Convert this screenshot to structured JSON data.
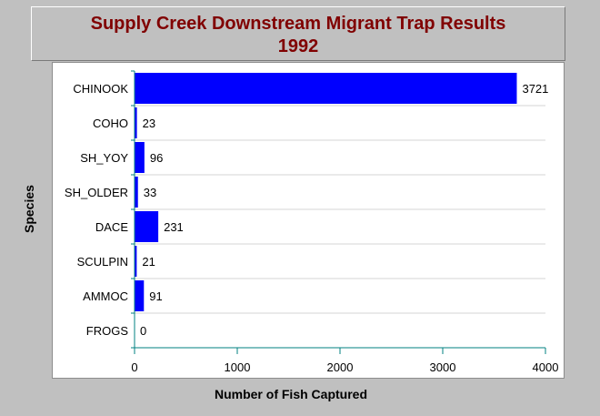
{
  "title": {
    "line1": "Supply Creek Downstream Migrant Trap Results",
    "line2": "1992"
  },
  "colors": {
    "bar": "#0000ff",
    "axis": "#008080",
    "title": "#800000",
    "background": "#c0c0c0",
    "plot": "#ffffff"
  },
  "chart_data": {
    "type": "bar",
    "orientation": "horizontal",
    "title": "Supply Creek Downstream Migrant Trap Results 1992",
    "xlabel": "Number of Fish Captured",
    "ylabel": "Species",
    "categories": [
      "CHINOOK",
      "COHO",
      "SH_YOY",
      "SH_OLDER",
      "DACE",
      "SCULPIN",
      "AMMOC",
      "FROGS"
    ],
    "values": [
      3721,
      23,
      96,
      33,
      231,
      21,
      91,
      0
    ],
    "data_labels": [
      "3721",
      "23",
      "96",
      "33",
      "231",
      "21",
      "91",
      "0"
    ],
    "xlim": [
      0,
      4000
    ],
    "xticks": [
      0,
      1000,
      2000,
      3000,
      4000
    ],
    "xtick_labels": [
      "0",
      "1000",
      "2000",
      "3000",
      "4000"
    ],
    "grid": false,
    "legend": "none"
  }
}
